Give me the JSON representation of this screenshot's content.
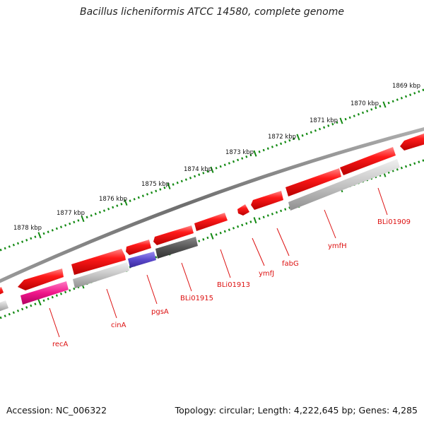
{
  "title": "Bacillus licheniformis ATCC 14580, complete genome",
  "footer": {
    "accession": "Accession: NC_006322",
    "summary": "Topology: circular; Length: 4,222,645 bp; Genes: 4,285"
  },
  "colors": {
    "backbone": "#7a7a7a",
    "forward_gene": "#ee1111",
    "reverse_gene": "#ee1111",
    "pseudo_gene": "#b8b8b8",
    "rna_gene": "#e0107a",
    "special_gene": "#5a48cc",
    "dark_gene": "#555555",
    "tick": "#138a13",
    "label": "#dd1111"
  },
  "scale_labels": [
    "1869 kbp",
    "1870 kbp",
    "1871 kbp",
    "1872 kbp",
    "1873 kbp",
    "1874 kbp",
    "1875 kbp",
    "1876 kbp",
    "1877 kbp",
    "1878 kbp"
  ],
  "gene_labels": [
    "BLi01909",
    "ymfH",
    "fabG",
    "ymfJ",
    "BLi01913",
    "BLi01915",
    "pgsA",
    "cinA",
    "recA"
  ]
}
